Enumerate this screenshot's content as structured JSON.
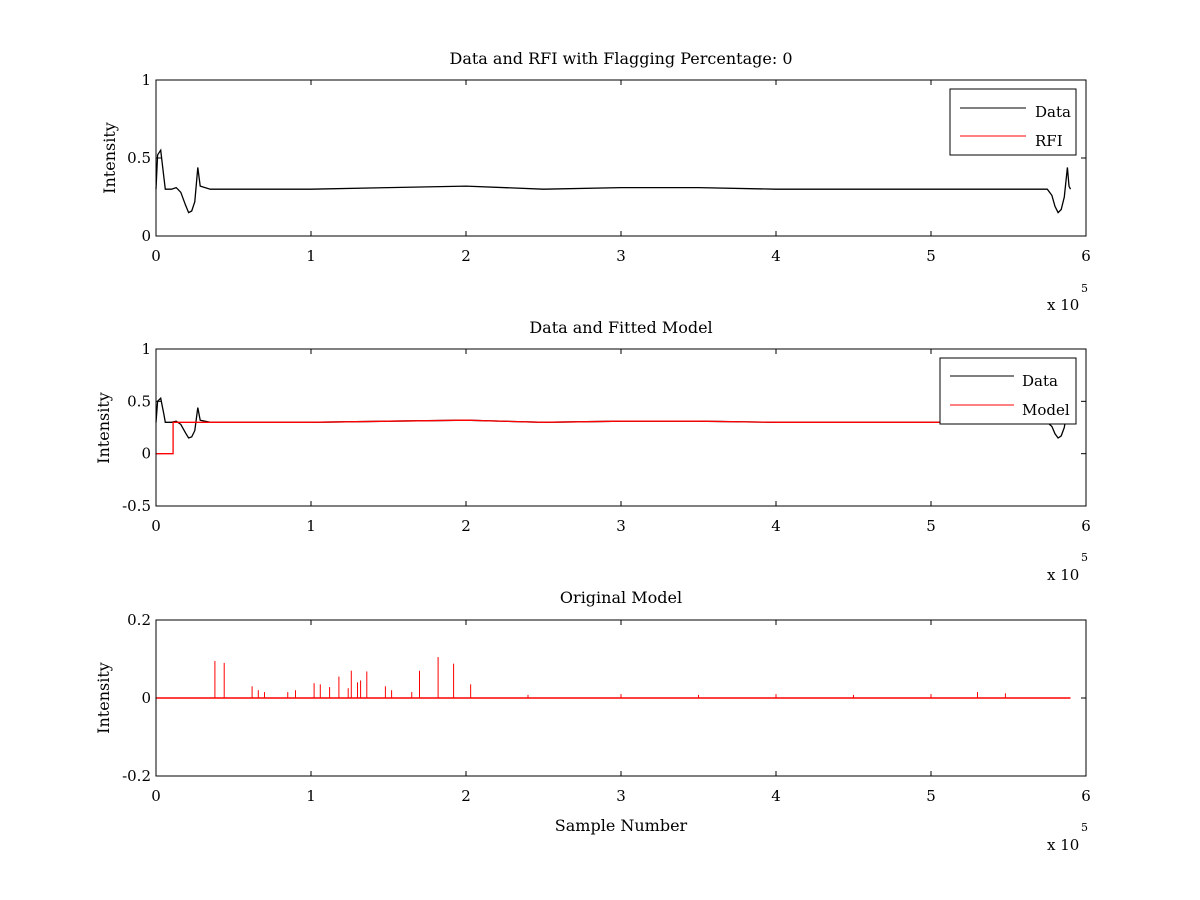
{
  "figure": {
    "background": "#ffffff"
  },
  "chart_data": [
    {
      "type": "line",
      "title": "Data and RFI with Flagging Percentage: 0",
      "xlabel": "",
      "ylabel": "Intensity",
      "xlim": [
        0,
        600000
      ],
      "ylim": [
        0,
        1
      ],
      "xticks": [
        0,
        1,
        2,
        3,
        4,
        5,
        6
      ],
      "yticks": [
        0,
        0.5,
        1
      ],
      "xtick_labels": [
        "0",
        "1",
        "2",
        "3",
        "4",
        "5",
        "6"
      ],
      "ytick_labels": [
        "0",
        "0.5",
        "1"
      ],
      "x_multiplier": {
        "prefix": "x 10",
        "exponent": "5"
      },
      "grid": false,
      "legend_position": "top-right",
      "series": [
        {
          "name": "Data",
          "color": "#000000",
          "points": [
            [
              0,
              0.3
            ],
            [
              1000,
              0.52
            ],
            [
              3000,
              0.55
            ],
            [
              5000,
              0.38
            ],
            [
              6000,
              0.3
            ],
            [
              10000,
              0.3
            ],
            [
              13000,
              0.31
            ],
            [
              16000,
              0.28
            ],
            [
              19000,
              0.2
            ],
            [
              21000,
              0.15
            ],
            [
              23000,
              0.16
            ],
            [
              25000,
              0.22
            ],
            [
              27000,
              0.44
            ],
            [
              28500,
              0.32
            ],
            [
              35000,
              0.3
            ],
            [
              50000,
              0.3
            ],
            [
              100000,
              0.3
            ],
            [
              150000,
              0.31
            ],
            [
              200000,
              0.32
            ],
            [
              250000,
              0.3
            ],
            [
              300000,
              0.31
            ],
            [
              350000,
              0.31
            ],
            [
              400000,
              0.3
            ],
            [
              450000,
              0.3
            ],
            [
              500000,
              0.3
            ],
            [
              550000,
              0.3
            ],
            [
              575000,
              0.3
            ],
            [
              578000,
              0.26
            ],
            [
              580000,
              0.19
            ],
            [
              582000,
              0.15
            ],
            [
              584000,
              0.17
            ],
            [
              586000,
              0.25
            ],
            [
              588000,
              0.44
            ],
            [
              589000,
              0.32
            ],
            [
              590000,
              0.3
            ]
          ]
        },
        {
          "name": "RFI",
          "color": "#ff0000",
          "points": []
        }
      ]
    },
    {
      "type": "line",
      "title": "Data and Fitted Model",
      "xlabel": "",
      "ylabel": "Intensity",
      "xlim": [
        0,
        600000
      ],
      "ylim": [
        -0.5,
        1
      ],
      "xticks": [
        0,
        1,
        2,
        3,
        4,
        5,
        6
      ],
      "yticks": [
        -0.5,
        0,
        0.5,
        1
      ],
      "xtick_labels": [
        "0",
        "1",
        "2",
        "3",
        "4",
        "5",
        "6"
      ],
      "ytick_labels": [
        "-0.5",
        "0",
        "0.5",
        "1"
      ],
      "x_multiplier": {
        "prefix": "x 10",
        "exponent": "5"
      },
      "grid": false,
      "legend_position": "top-right",
      "series": [
        {
          "name": "Data",
          "color": "#000000",
          "points": [
            [
              0,
              0.3
            ],
            [
              1000,
              0.5
            ],
            [
              3000,
              0.53
            ],
            [
              5000,
              0.38
            ],
            [
              6000,
              0.3
            ],
            [
              10000,
              0.3
            ],
            [
              13000,
              0.31
            ],
            [
              16000,
              0.28
            ],
            [
              19000,
              0.2
            ],
            [
              21000,
              0.15
            ],
            [
              23000,
              0.16
            ],
            [
              25000,
              0.22
            ],
            [
              27000,
              0.44
            ],
            [
              28500,
              0.32
            ],
            [
              35000,
              0.3
            ],
            [
              50000,
              0.3
            ],
            [
              100000,
              0.3
            ],
            [
              150000,
              0.31
            ],
            [
              200000,
              0.32
            ],
            [
              250000,
              0.3
            ],
            [
              300000,
              0.31
            ],
            [
              350000,
              0.31
            ],
            [
              400000,
              0.3
            ],
            [
              450000,
              0.3
            ],
            [
              500000,
              0.3
            ],
            [
              550000,
              0.3
            ],
            [
              575000,
              0.3
            ],
            [
              578000,
              0.26
            ],
            [
              580000,
              0.19
            ],
            [
              582000,
              0.15
            ],
            [
              584000,
              0.17
            ],
            [
              586000,
              0.25
            ],
            [
              588000,
              0.44
            ],
            [
              589000,
              0.32
            ],
            [
              590000,
              0.3
            ]
          ]
        },
        {
          "name": "Model",
          "color": "#ff0000",
          "points": [
            [
              0,
              0
            ],
            [
              11000,
              0
            ],
            [
              11000,
              0.3
            ],
            [
              30000,
              0.3
            ],
            [
              50000,
              0.3
            ],
            [
              100000,
              0.3
            ],
            [
              150000,
              0.31
            ],
            [
              200000,
              0.32
            ],
            [
              250000,
              0.3
            ],
            [
              300000,
              0.31
            ],
            [
              350000,
              0.31
            ],
            [
              400000,
              0.3
            ],
            [
              450000,
              0.3
            ],
            [
              500000,
              0.3
            ],
            [
              550000,
              0.3
            ]
          ]
        }
      ]
    },
    {
      "type": "line",
      "title": "Original Model",
      "xlabel": "Sample Number",
      "ylabel": "Intensity",
      "xlim": [
        0,
        600000
      ],
      "ylim": [
        -0.2,
        0.2
      ],
      "xticks": [
        0,
        1,
        2,
        3,
        4,
        5,
        6
      ],
      "yticks": [
        -0.2,
        0,
        0.2
      ],
      "xtick_labels": [
        "0",
        "1",
        "2",
        "3",
        "4",
        "5",
        "6"
      ],
      "ytick_labels": [
        "-0.2",
        "0",
        "0.2"
      ],
      "x_multiplier": {
        "prefix": "x 10",
        "exponent": "5"
      },
      "grid": false,
      "series": [
        {
          "color": "#ff0000",
          "baseline": 0,
          "x_end": 590000,
          "spikes": [
            [
              38000,
              0.095
            ],
            [
              44000,
              0.09
            ],
            [
              62000,
              0.03
            ],
            [
              66000,
              0.02
            ],
            [
              70000,
              0.015
            ],
            [
              85000,
              0.015
            ],
            [
              90000,
              0.02
            ],
            [
              102000,
              0.038
            ],
            [
              106000,
              0.035
            ],
            [
              112000,
              0.028
            ],
            [
              118000,
              0.055
            ],
            [
              124000,
              0.025
            ],
            [
              126000,
              0.07
            ],
            [
              130000,
              0.04
            ],
            [
              132000,
              0.045
            ],
            [
              136000,
              0.068
            ],
            [
              148000,
              0.03
            ],
            [
              152000,
              0.02
            ],
            [
              165000,
              0.015
            ],
            [
              170000,
              0.07
            ],
            [
              182000,
              0.105
            ],
            [
              192000,
              0.088
            ],
            [
              203000,
              0.035
            ],
            [
              240000,
              0.008
            ],
            [
              300000,
              0.01
            ],
            [
              350000,
              0.008
            ],
            [
              400000,
              0.01
            ],
            [
              450000,
              0.008
            ],
            [
              500000,
              0.01
            ],
            [
              530000,
              0.015
            ],
            [
              548000,
              0.012
            ]
          ]
        }
      ]
    }
  ]
}
